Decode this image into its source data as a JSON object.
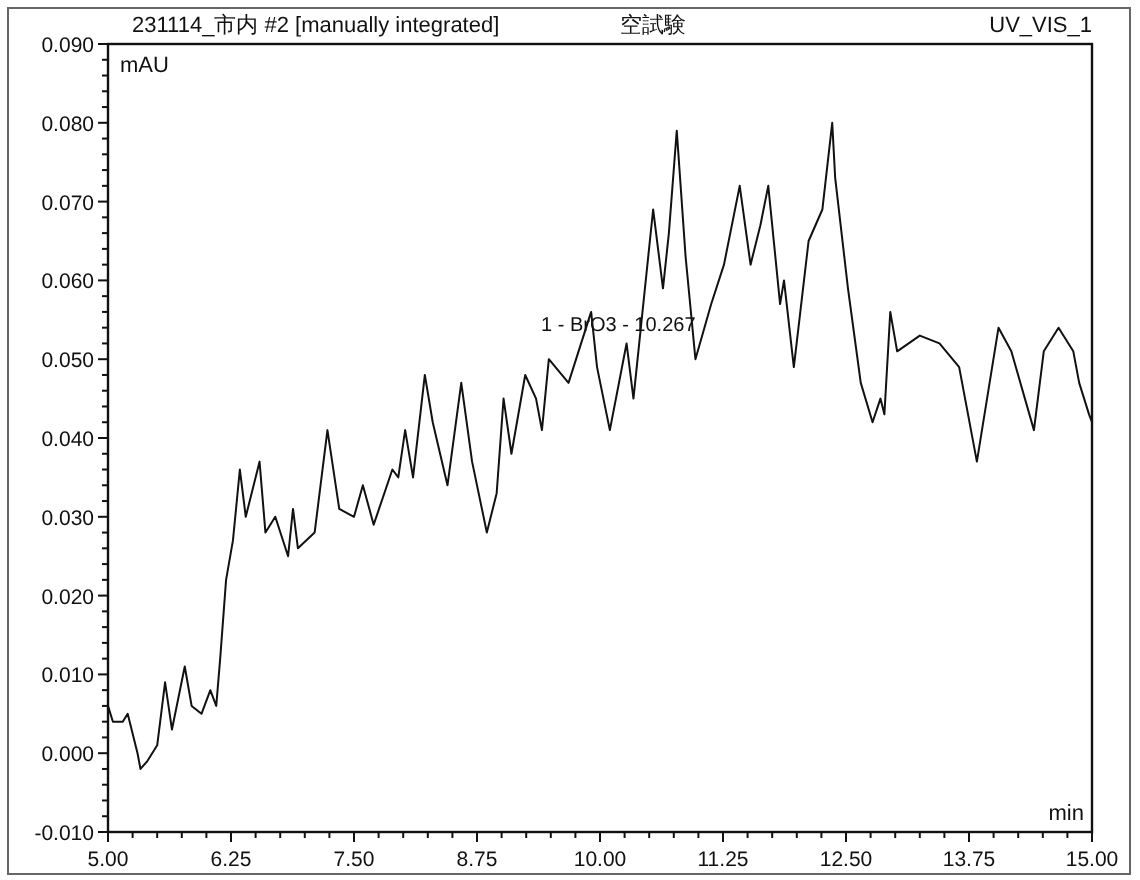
{
  "chart_data": {
    "type": "line",
    "title": "231114_市内 #2 [manually integrated]",
    "subtitle": "空試験",
    "xlabel": "min",
    "ylabel": "mAU",
    "annotations": [
      "UV_VIS_1",
      {
        "text": "1 - BrO3 - 10.267",
        "x": 10.267,
        "y": 0.051
      }
    ],
    "xlim": [
      5,
      15
    ],
    "ylim": [
      -0.01,
      0.09
    ],
    "xticks": [
      {
        "value": 5,
        "label": "5.00"
      },
      {
        "value": 6.25,
        "label": "6.25"
      },
      {
        "value": 7.5,
        "label": "7.50"
      },
      {
        "value": 8.75,
        "label": "8.75"
      },
      {
        "value": 10,
        "label": "10.00"
      },
      {
        "value": 11.25,
        "label": "11.25"
      },
      {
        "value": 12.5,
        "label": "12.50"
      },
      {
        "value": 13.75,
        "label": "13.75"
      },
      {
        "value": 15,
        "label": "15.00"
      }
    ],
    "yticks": [
      {
        "value": -0.01,
        "label": "-0.010"
      },
      {
        "value": 0,
        "label": "0.000"
      },
      {
        "value": 0.01,
        "label": "0.010"
      },
      {
        "value": 0.02,
        "label": "0.020"
      },
      {
        "value": 0.03,
        "label": "0.030"
      },
      {
        "value": 0.04,
        "label": "0.040"
      },
      {
        "value": 0.05,
        "label": "0.050"
      },
      {
        "value": 0.06,
        "label": "0.060"
      },
      {
        "value": 0.07,
        "label": "0.070"
      },
      {
        "value": 0.08,
        "label": "0.080"
      },
      {
        "value": 0.09,
        "label": "0.090"
      }
    ],
    "grid": false,
    "marker": "none",
    "line_style": "solid",
    "series": [
      {
        "color": "#111111",
        "x": [
          5.0,
          5.05,
          5.15,
          5.2,
          5.3,
          5.33,
          5.4,
          5.5,
          5.58,
          5.65,
          5.78,
          5.85,
          5.95,
          6.04,
          6.1,
          6.14,
          6.2,
          6.27,
          6.34,
          6.4,
          6.54,
          6.6,
          6.7,
          6.83,
          6.88,
          6.93,
          7.1,
          7.23,
          7.35,
          7.5,
          7.59,
          7.7,
          7.89,
          7.95,
          8.02,
          8.1,
          8.22,
          8.3,
          8.45,
          8.59,
          8.7,
          8.85,
          8.95,
          9.02,
          9.1,
          9.24,
          9.35,
          9.41,
          9.48,
          9.68,
          9.91,
          9.97,
          10.1,
          10.27,
          10.34,
          10.54,
          10.64,
          10.7,
          10.78,
          10.87,
          10.97,
          11.13,
          11.26,
          11.42,
          11.53,
          11.63,
          11.71,
          11.83,
          11.87,
          11.97,
          12.12,
          12.26,
          12.36,
          12.39,
          12.52,
          12.65,
          12.77,
          12.85,
          12.89,
          12.95,
          13.02,
          13.25,
          13.45,
          13.65,
          13.83,
          14.05,
          14.18,
          14.41,
          14.51,
          14.66,
          14.81,
          14.87,
          14.97,
          15.0
        ],
        "values": [
          0.006,
          0.004,
          0.004,
          0.005,
          0.0,
          -0.002,
          -0.001,
          0.001,
          0.009,
          0.003,
          0.011,
          0.006,
          0.005,
          0.008,
          0.006,
          0.012,
          0.022,
          0.027,
          0.036,
          0.03,
          0.037,
          0.028,
          0.03,
          0.025,
          0.031,
          0.026,
          0.028,
          0.041,
          0.031,
          0.03,
          0.034,
          0.029,
          0.036,
          0.035,
          0.041,
          0.035,
          0.048,
          0.042,
          0.034,
          0.047,
          0.037,
          0.028,
          0.033,
          0.045,
          0.038,
          0.048,
          0.045,
          0.041,
          0.05,
          0.047,
          0.056,
          0.049,
          0.041,
          0.052,
          0.045,
          0.069,
          0.059,
          0.066,
          0.079,
          0.063,
          0.05,
          0.057,
          0.062,
          0.072,
          0.062,
          0.067,
          0.072,
          0.057,
          0.06,
          0.049,
          0.065,
          0.069,
          0.08,
          0.073,
          0.059,
          0.047,
          0.042,
          0.045,
          0.043,
          0.056,
          0.051,
          0.053,
          0.052,
          0.049,
          0.037,
          0.054,
          0.051,
          0.041,
          0.051,
          0.054,
          0.051,
          0.047,
          0.043,
          0.042
        ]
      }
    ]
  }
}
